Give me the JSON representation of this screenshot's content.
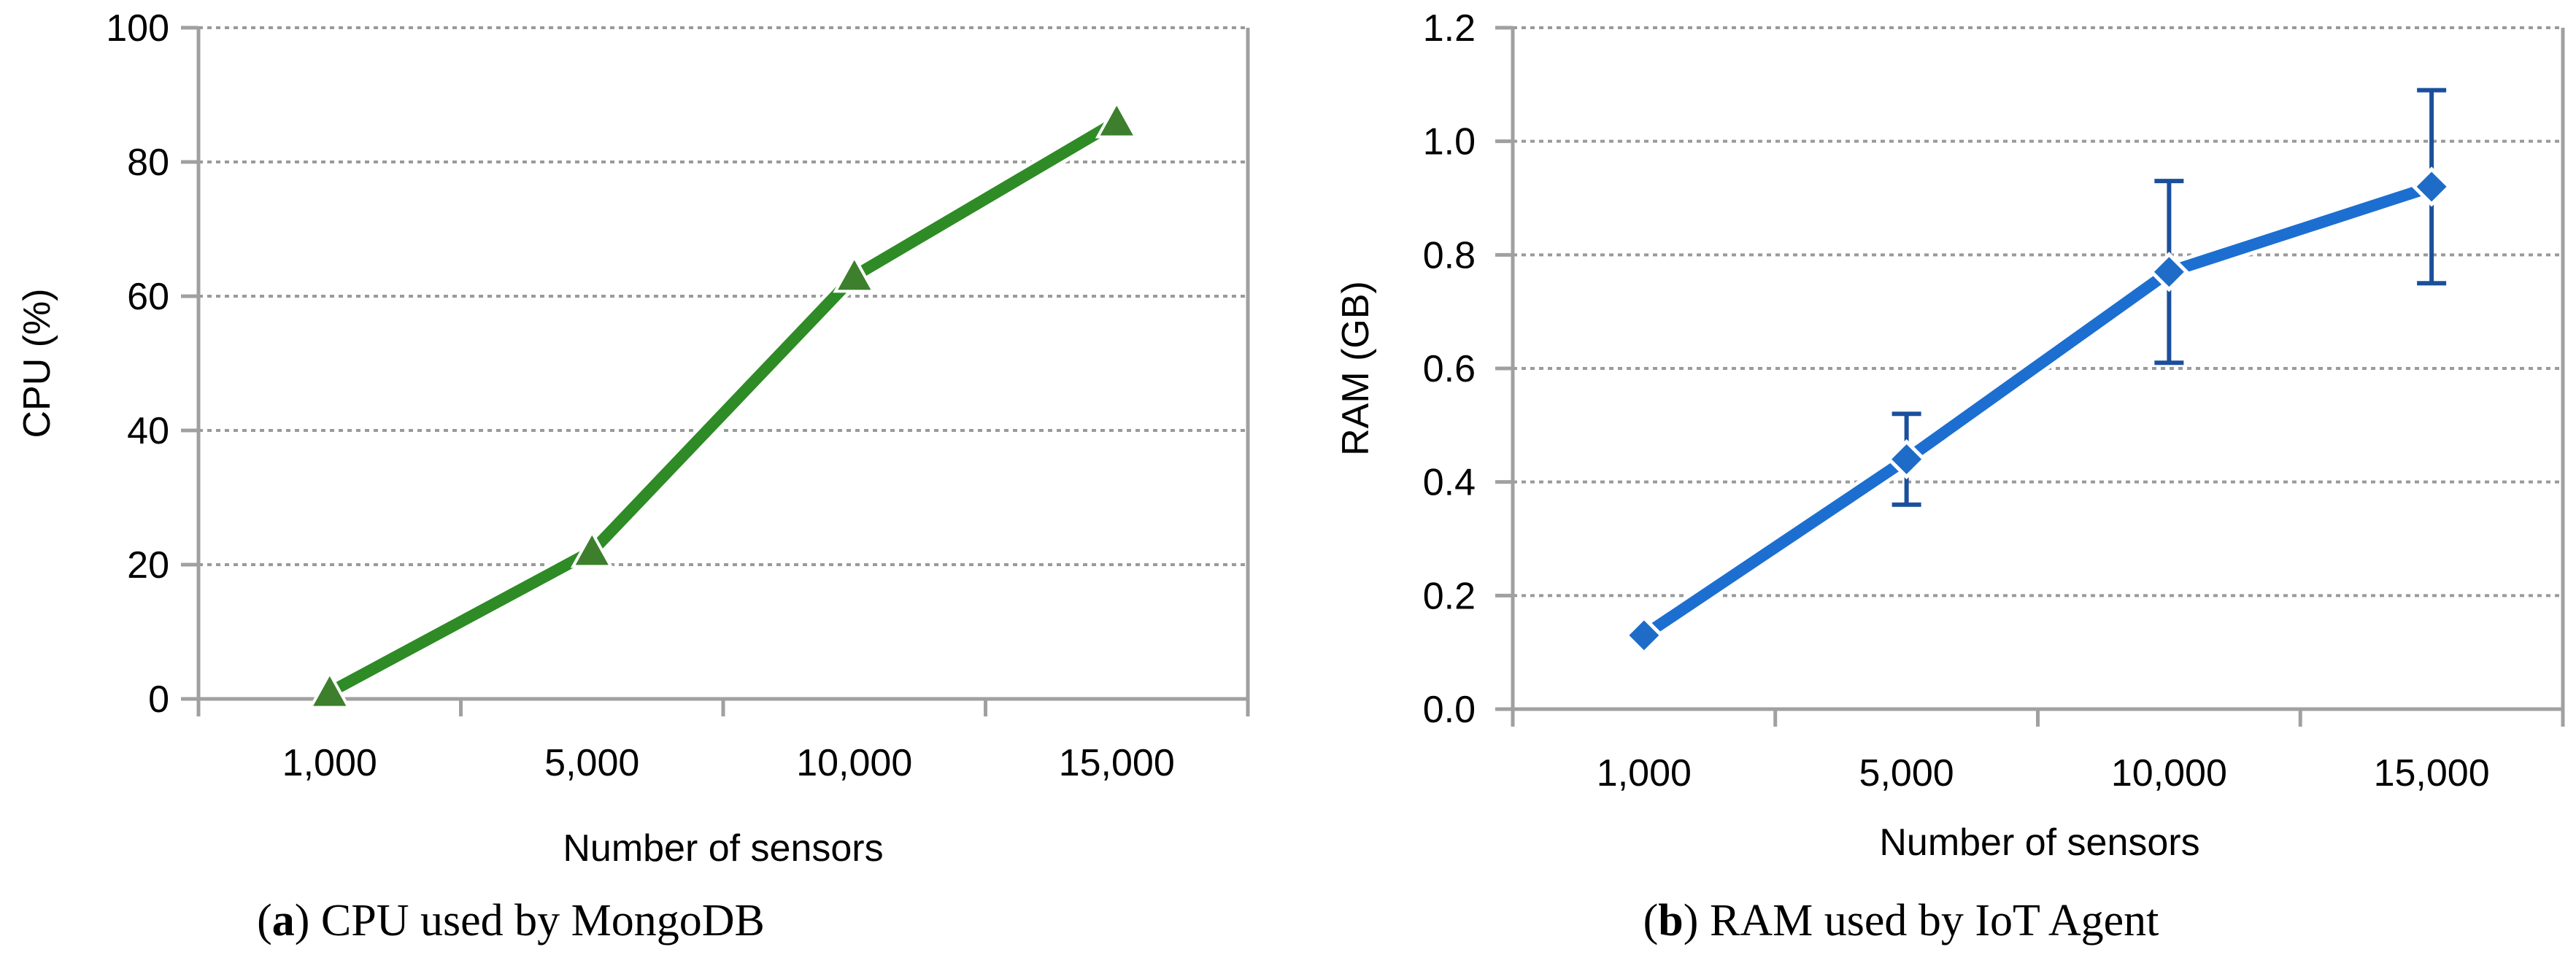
{
  "colors": {
    "series_a": "#2e8b25",
    "series_a_marker": "#3d7f2c",
    "series_b": "#1c6fd0",
    "series_b_marker": "#1e6cc8",
    "error_bar": "#1a4f9c",
    "grid": "#9a9a9a",
    "axis": "#a0a0a0"
  },
  "chart_data": [
    {
      "type": "line",
      "caption_letter": "a",
      "caption_text": "CPU used by MongoDB",
      "caption_open": "(",
      "caption_close": ") ",
      "xlabel": "Number of sensors",
      "ylabel": "CPU (%)",
      "categories": [
        "1,000",
        "5,000",
        "10,000",
        "15,000"
      ],
      "ylim": [
        0,
        100
      ],
      "yticks": [
        0,
        20,
        40,
        60,
        80,
        100
      ],
      "ytick_labels": [
        "0",
        "20",
        "40",
        "60",
        "80",
        "100"
      ],
      "grid": true,
      "marker": "triangle",
      "series": [
        {
          "values": [
            1,
            22,
            63,
            86
          ]
        }
      ]
    },
    {
      "type": "line",
      "caption_letter": "b",
      "caption_text": "RAM used by IoT Agent",
      "caption_open": "(",
      "caption_close": ") ",
      "xlabel": "Number of sensors",
      "ylabel": "RAM  (GB)",
      "categories": [
        "1,000",
        "5,000",
        "10,000",
        "15,000"
      ],
      "ylim": [
        0,
        1.2
      ],
      "yticks": [
        0,
        0.2,
        0.4,
        0.6,
        0.8,
        1.0,
        1.2
      ],
      "ytick_labels": [
        "0.0",
        "0.2",
        "0.4",
        "0.6",
        "0.8",
        "1.0",
        "1.2"
      ],
      "grid": true,
      "marker": "diamond",
      "series": [
        {
          "values": [
            0.13,
            0.44,
            0.77,
            0.92
          ],
          "error_low": [
            0.13,
            0.36,
            0.61,
            0.75
          ],
          "error_high": [
            0.13,
            0.52,
            0.93,
            1.09
          ]
        }
      ]
    }
  ]
}
